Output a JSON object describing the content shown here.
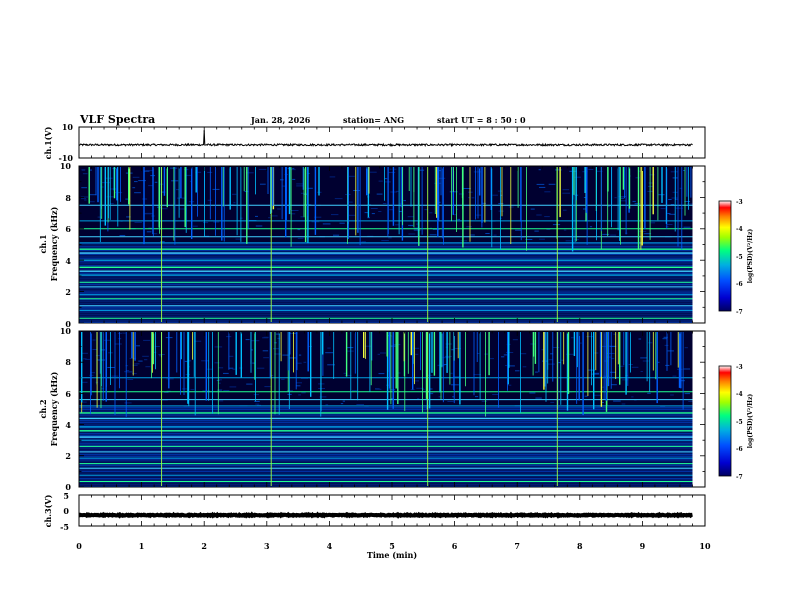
{
  "chart_data": {
    "type": "heatmap",
    "title": "VLF Spectra",
    "date": "Jan. 28, 2026",
    "station": "station= ANG",
    "start_ut": "start  UT =  8 : 50 : 0",
    "xlabel": "Time  (min)",
    "xlim": [
      0,
      10
    ],
    "xticks": [
      "0",
      "1",
      "2",
      "3",
      "4",
      "5",
      "6",
      "7",
      "8",
      "9",
      "10"
    ],
    "panels": [
      {
        "name": "ch1-waveform",
        "type": "line",
        "ylabel": "ch.1(V)",
        "ylim": [
          -10,
          10
        ],
        "yticks": [
          "10",
          "-10"
        ],
        "baseline": -1.5,
        "noise": 0.6,
        "spike_at_min": 2.0,
        "spike_value": 8,
        "data_end_min": 9.8
      },
      {
        "name": "ch1-spectrogram",
        "type": "heatmap",
        "ylabel_line1": "ch.1",
        "ylabel_line2": "Frequency  (kHz)",
        "ylim": [
          0,
          10
        ],
        "yticks": [
          "0",
          "2",
          "4",
          "6",
          "8",
          "10"
        ],
        "colorbar": {
          "label": "log(PSD)(V²/Hz)",
          "range": [
            -7,
            -3
          ],
          "ticks": [
            "-3",
            "-4",
            "-5",
            "-6",
            "-7"
          ]
        },
        "tone_lines_khz": [
          0.3,
          0.8,
          1.1,
          1.55,
          1.8,
          2.3,
          2.6,
          3.05,
          3.3,
          3.55,
          4.0,
          4.45,
          4.7,
          5.1,
          5.5,
          6.0,
          6.5,
          7.5
        ],
        "data_end_min": 9.8
      },
      {
        "name": "ch2-spectrogram",
        "type": "heatmap",
        "ylabel_line1": "ch.2",
        "ylabel_line2": "Frequency  (kHz)",
        "ylim": [
          0,
          10
        ],
        "yticks": [
          "0",
          "2",
          "4",
          "6",
          "8",
          "10"
        ],
        "colorbar": {
          "label": "log(PSD)(V²/Hz)",
          "range": [
            -7,
            -3
          ],
          "ticks": [
            "-3",
            "-4",
            "-5",
            "-6",
            "-7"
          ]
        },
        "tone_lines_khz": [
          0.35,
          0.75,
          1.2,
          1.5,
          1.85,
          2.25,
          2.6,
          3.0,
          3.2,
          3.6,
          3.85,
          4.4,
          4.75,
          5.2,
          5.6,
          6.1,
          7.0
        ],
        "data_end_min": 9.8
      },
      {
        "name": "ch3-waveform",
        "type": "line",
        "ylabel": "ch.3(V)",
        "ylim": [
          -5,
          5
        ],
        "yticks": [
          "5",
          "0",
          "-5"
        ],
        "baseline": -1.5,
        "noise": 0.15,
        "data_end_min": 9.8
      }
    ]
  }
}
